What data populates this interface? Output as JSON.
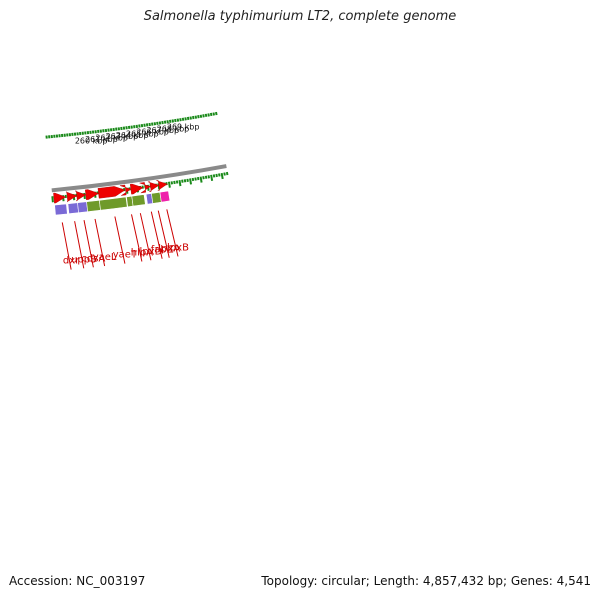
{
  "title": "Salmonella typhimurium LT2, complete genome",
  "footer": {
    "accession": "Accession: NC_003197",
    "summary": "Topology: circular; Length: 4,857,432 bp; Genes: 4,541"
  },
  "colors": {
    "backbone": "#8a8a8a",
    "cds": "#ee0000",
    "tick": "#1a8a1a",
    "label": "#cc0000",
    "purple": "#7a6ad6",
    "olive": "#6f9a2a",
    "magenta": "#ee22aa"
  },
  "genes": [
    {
      "name": "dxr",
      "color": "purple",
      "cds": true
    },
    {
      "name": "uppS",
      "color": "purple",
      "cds": true
    },
    {
      "name": "cdsA",
      "color": "purple",
      "cds": true
    },
    {
      "name": "yaeL",
      "color": "olive",
      "cds": true
    },
    {
      "name": "yaeT",
      "color": "olive",
      "cds": true
    },
    {
      "name": "hlpA",
      "color": "olive",
      "cds": true
    },
    {
      "name": "lpxD",
      "color": "olive",
      "cds": true
    },
    {
      "name": "fabZ",
      "color": "purple",
      "cds": true
    },
    {
      "name": "lpxA",
      "color": "olive",
      "cds": true
    },
    {
      "name": "lpxB",
      "color": "magenta",
      "cds": true
    }
  ],
  "scale": {
    "start_kbp": 260,
    "end_kbp": 269,
    "labels": [
      "260 kbp",
      "261 kbp",
      "262 kbp",
      "263 kbp",
      "264 kbp",
      "265 kbp",
      "266 kbp",
      "267 kbp",
      "268 kbp",
      "269 kbp"
    ]
  }
}
